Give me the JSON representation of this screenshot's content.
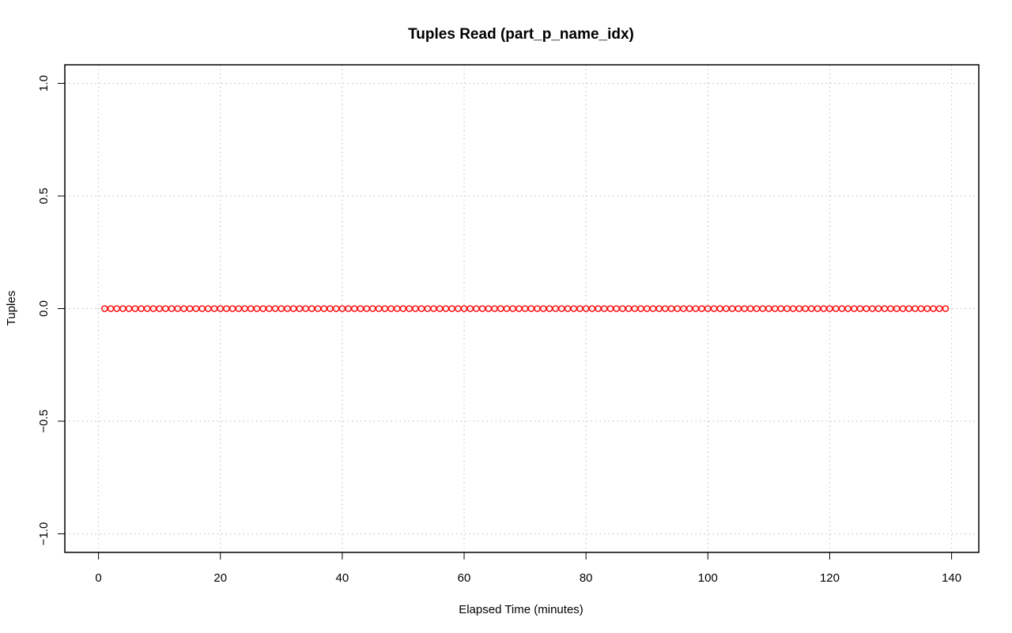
{
  "chart_data": {
    "type": "scatter",
    "title": "Tuples Read (part_p_name_idx)",
    "xlabel": "Elapsed Time (minutes)",
    "ylabel": "Tuples",
    "xlim": [
      1,
      139
    ],
    "ylim": [
      -1.0,
      1.0
    ],
    "x_ticks": [
      0,
      20,
      40,
      60,
      80,
      100,
      120,
      140
    ],
    "x_tick_labels": [
      "0",
      "20",
      "40",
      "60",
      "80",
      "100",
      "120",
      "140"
    ],
    "y_ticks": [
      -1.0,
      -0.5,
      0.0,
      0.5,
      1.0
    ],
    "y_tick_labels": [
      "−1.0",
      "−0.5",
      "0.0",
      "0.5",
      "1.0"
    ],
    "grid": true,
    "point_color": "#ff0000",
    "series": [
      {
        "x_start": 1,
        "x_end": 139,
        "x_step": 1,
        "y_constant": 0
      }
    ]
  }
}
